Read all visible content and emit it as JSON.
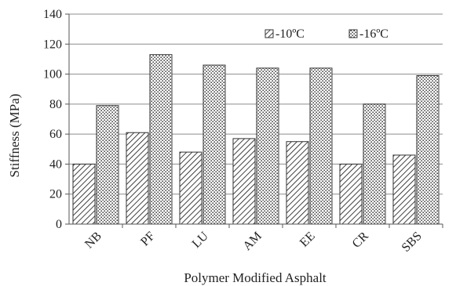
{
  "chart_data": {
    "type": "bar",
    "title": "",
    "xlabel": "Polymer Modified Asphalt",
    "ylabel": "Stiffness (MPa)",
    "categories": [
      "NB",
      "PF",
      "LU",
      "AM",
      "EE",
      "CR",
      "SBS"
    ],
    "series": [
      {
        "name": "-10ºC",
        "values": [
          40,
          61,
          48,
          57,
          55,
          40,
          46
        ]
      },
      {
        "name": "-16ºC",
        "values": [
          79,
          113,
          106,
          104,
          104,
          80,
          99
        ]
      }
    ],
    "ylim": [
      0,
      140
    ],
    "yticks": [
      0,
      20,
      40,
      60,
      80,
      100,
      120,
      140
    ],
    "grid": true,
    "legend_position": "top-right"
  }
}
